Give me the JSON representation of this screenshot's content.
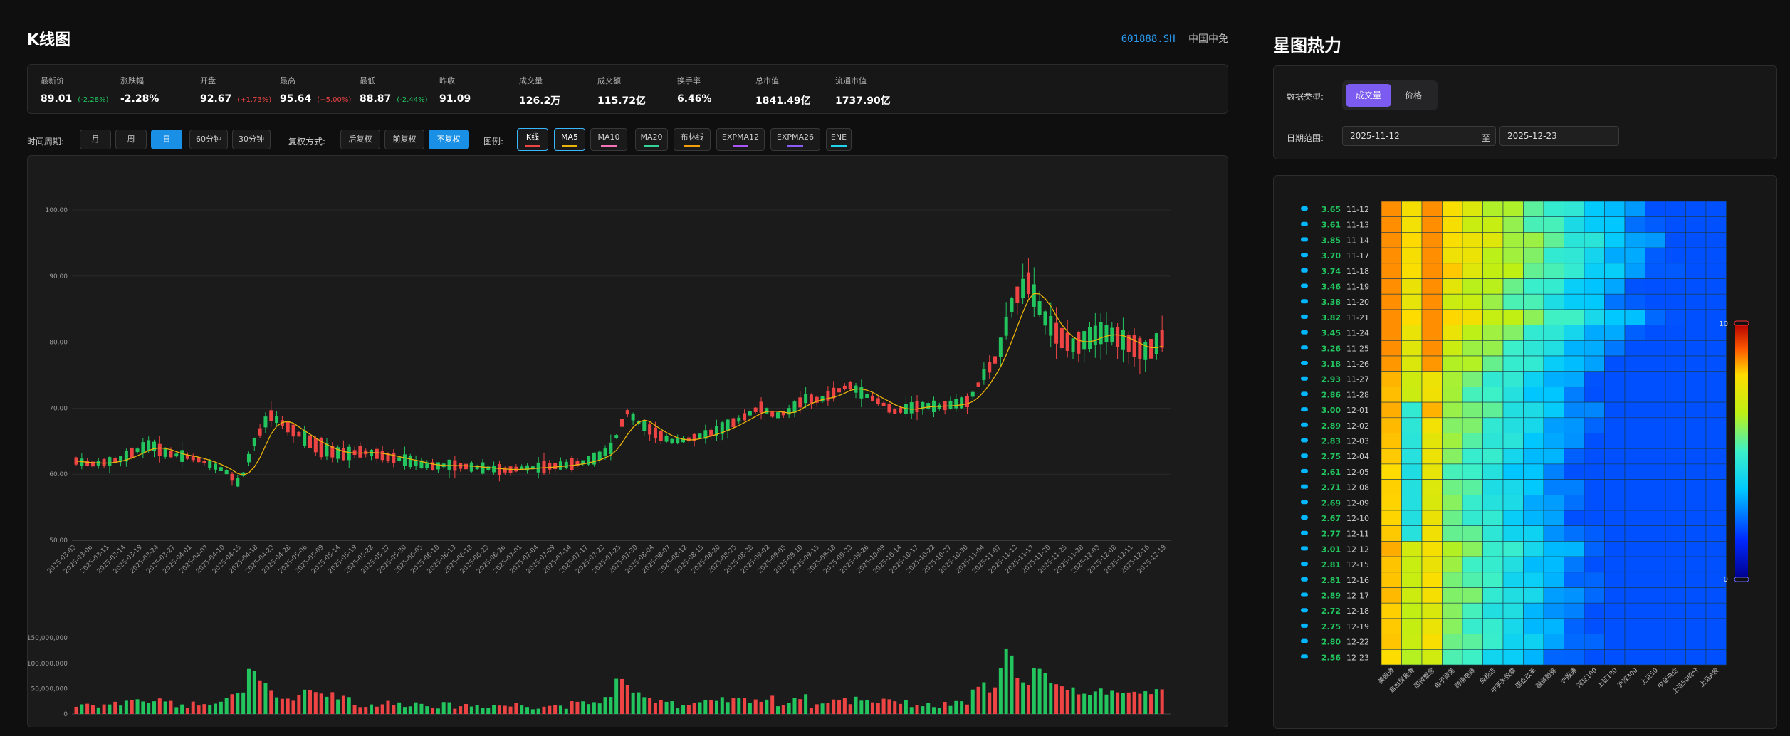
{
  "page": {
    "title": "K线图",
    "stock_code": "601888.SH",
    "stock_name": "中国中免"
  },
  "stats": [
    {
      "label": "最新价",
      "value": "89.01",
      "sub": "(-2.28%)",
      "tone": "g"
    },
    {
      "label": "涨跌幅",
      "value": "-2.28%",
      "sub": "",
      "tone": "g"
    },
    {
      "label": "开盘",
      "value": "92.67",
      "sub": "(+1.73%)",
      "tone": "w",
      "subtone": "r"
    },
    {
      "label": "最高",
      "value": "95.64",
      "sub": "(+5.00%)",
      "tone": "r"
    },
    {
      "label": "最低",
      "value": "88.87",
      "sub": "(-2.44%)",
      "tone": "g"
    },
    {
      "label": "昨收",
      "value": "91.09",
      "sub": "",
      "tone": "w"
    },
    {
      "label": "成交量",
      "value": "126.2万",
      "sub": "",
      "tone": "w"
    },
    {
      "label": "成交额",
      "value": "115.72亿",
      "sub": "",
      "tone": "w"
    },
    {
      "label": "换手率",
      "value": "6.46%",
      "sub": "",
      "tone": "w"
    },
    {
      "label": "总市值",
      "value": "1841.49亿",
      "sub": "",
      "tone": "w"
    },
    {
      "label": "流通市值",
      "value": "1737.90亿",
      "sub": "",
      "tone": "w"
    }
  ],
  "toolbar": {
    "period_label": "时间周期:",
    "periods": [
      "月",
      "周",
      "日",
      "60分钟",
      "30分钟"
    ],
    "period_active": 2,
    "adjust_label": "复权方式:",
    "adjusts": [
      "后复权",
      "前复权",
      "不复权"
    ],
    "adjust_active": 2,
    "legend_label": "图例:",
    "legends": [
      {
        "label": "K线",
        "color": "#ef4444",
        "on": true
      },
      {
        "label": "MA5",
        "color": "#eab308",
        "on": true
      },
      {
        "label": "MA10",
        "color": "#f472b6",
        "on": false
      },
      {
        "label": "MA20",
        "color": "#34d399",
        "on": false
      },
      {
        "label": "布林线",
        "color": "#f59e0b",
        "on": false
      },
      {
        "label": "EXPMA12",
        "color": "#a855f7",
        "on": false
      },
      {
        "label": "EXPMA26",
        "color": "#8b5cf6",
        "on": false
      },
      {
        "label": "ENE",
        "color": "#22d3ee",
        "on": false
      }
    ]
  },
  "chart_data": [
    {
      "type": "candlestick",
      "y_ticks": [
        "50.00",
        "60.00",
        "70.00",
        "80.00",
        "90.00",
        "100.00"
      ],
      "ylim": [
        50,
        100
      ],
      "x_tick_labels": [
        "2025-03-03",
        "2025-03-06",
        "2025-03-11",
        "2025-03-14",
        "2025-03-19",
        "2025-03-24",
        "2025-03-27",
        "2025-04-01",
        "2025-04-07",
        "2025-04-10",
        "2025-04-15",
        "2025-04-18",
        "2025-04-23",
        "2025-04-28",
        "2025-05-06",
        "2025-05-09",
        "2025-05-14",
        "2025-05-19",
        "2025-05-22",
        "2025-05-27",
        "2025-05-30",
        "2025-06-05",
        "2025-06-10",
        "2025-06-13",
        "2025-06-18",
        "2025-06-23",
        "2025-06-26",
        "2025-07-01",
        "2025-07-04",
        "2025-07-09",
        "2025-07-14",
        "2025-07-17",
        "2025-07-22",
        "2025-07-25",
        "2025-07-30",
        "2025-08-04",
        "2025-08-07",
        "2025-08-12",
        "2025-08-15",
        "2025-08-20",
        "2025-08-25",
        "2025-08-28",
        "2025-09-02",
        "2025-09-05",
        "2025-09-10",
        "2025-09-15",
        "2025-09-18",
        "2025-09-23",
        "2025-09-26",
        "2025-10-09",
        "2025-10-14",
        "2025-10-17",
        "2025-10-22",
        "2025-10-27",
        "2025-10-30",
        "2025-11-04",
        "2025-11-07",
        "2025-11-12",
        "2025-11-17",
        "2025-11-20",
        "2025-11-25",
        "2025-11-28",
        "2025-12-03",
        "2025-12-08",
        "2025-12-11",
        "2025-12-16",
        "2025-12-19"
      ],
      "close_trend": [
        62,
        61.5,
        61.8,
        62.3,
        63.5,
        64.5,
        63.2,
        62.8,
        62.4,
        61.5,
        60.5,
        58.5,
        65,
        69,
        67.5,
        66,
        64.5,
        63.5,
        63,
        63.4,
        63.2,
        62.6,
        62.2,
        61.6,
        61.2,
        61.4,
        61.2,
        61,
        60.8,
        60.6,
        60.9,
        61,
        61.2,
        61.4,
        61.8,
        62.5,
        64,
        69.5,
        67.5,
        66.2,
        65,
        65.2,
        65.8,
        66.5,
        67.6,
        68.8,
        70.2,
        68.8,
        69.6,
        71.5,
        71.2,
        72.4,
        73.5,
        72,
        71,
        69.5,
        70,
        70.4,
        70.2,
        70.6,
        71,
        75,
        78,
        86.5,
        89,
        84,
        81,
        79.5,
        80.5,
        81.5,
        80.8,
        79.5,
        78.5,
        80.5
      ],
      "ma5_color": "#eab308"
    },
    {
      "type": "bar",
      "y_ticks": [
        "0",
        "50,000,000",
        "100,000,000",
        "150,000,000"
      ],
      "ylim": [
        0,
        160000000
      ]
    },
    {
      "type": "heatmap",
      "rows": [
        {
          "value": "3.65",
          "date": "11-12"
        },
        {
          "value": "3.61",
          "date": "11-13"
        },
        {
          "value": "3.85",
          "date": "11-14"
        },
        {
          "value": "3.70",
          "date": "11-17"
        },
        {
          "value": "3.74",
          "date": "11-18"
        },
        {
          "value": "3.46",
          "date": "11-19"
        },
        {
          "value": "3.38",
          "date": "11-20"
        },
        {
          "value": "3.82",
          "date": "11-21"
        },
        {
          "value": "3.45",
          "date": "11-24"
        },
        {
          "value": "3.26",
          "date": "11-25"
        },
        {
          "value": "3.18",
          "date": "11-26"
        },
        {
          "value": "2.93",
          "date": "11-27"
        },
        {
          "value": "2.86",
          "date": "11-28"
        },
        {
          "value": "3.00",
          "date": "12-01"
        },
        {
          "value": "2.89",
          "date": "12-02"
        },
        {
          "value": "2.83",
          "date": "12-03"
        },
        {
          "value": "2.75",
          "date": "12-04"
        },
        {
          "value": "2.61",
          "date": "12-05"
        },
        {
          "value": "2.71",
          "date": "12-08"
        },
        {
          "value": "2.69",
          "date": "12-09"
        },
        {
          "value": "2.67",
          "date": "12-10"
        },
        {
          "value": "2.77",
          "date": "12-11"
        },
        {
          "value": "3.01",
          "date": "12-12"
        },
        {
          "value": "2.81",
          "date": "12-15"
        },
        {
          "value": "2.81",
          "date": "12-16"
        },
        {
          "value": "2.89",
          "date": "12-17"
        },
        {
          "value": "2.72",
          "date": "12-18"
        },
        {
          "value": "2.75",
          "date": "12-19"
        },
        {
          "value": "2.80",
          "date": "12-22"
        },
        {
          "value": "2.56",
          "date": "12-23"
        }
      ],
      "columns": [
        "美股通",
        "自由贸易港",
        "国资概念",
        "电子商务",
        "跨境电商",
        "免税店",
        "中字头股票",
        "国企改革",
        "融资融券",
        "沪股通",
        "深证100",
        "上证180",
        "沪深300",
        "上证50",
        "中证央企",
        "上证50成分",
        "上证A股"
      ],
      "visualmap": {
        "min": "0",
        "max": "10"
      }
    }
  ],
  "heatmap_panel": {
    "title": "星图热力",
    "type_label": "数据类型:",
    "types": [
      "成交量",
      "价格"
    ],
    "type_active": 0,
    "range_label": "日期范围:",
    "range_sep": "至",
    "date_start": "2025-11-12",
    "date_end": "2025-12-23"
  }
}
